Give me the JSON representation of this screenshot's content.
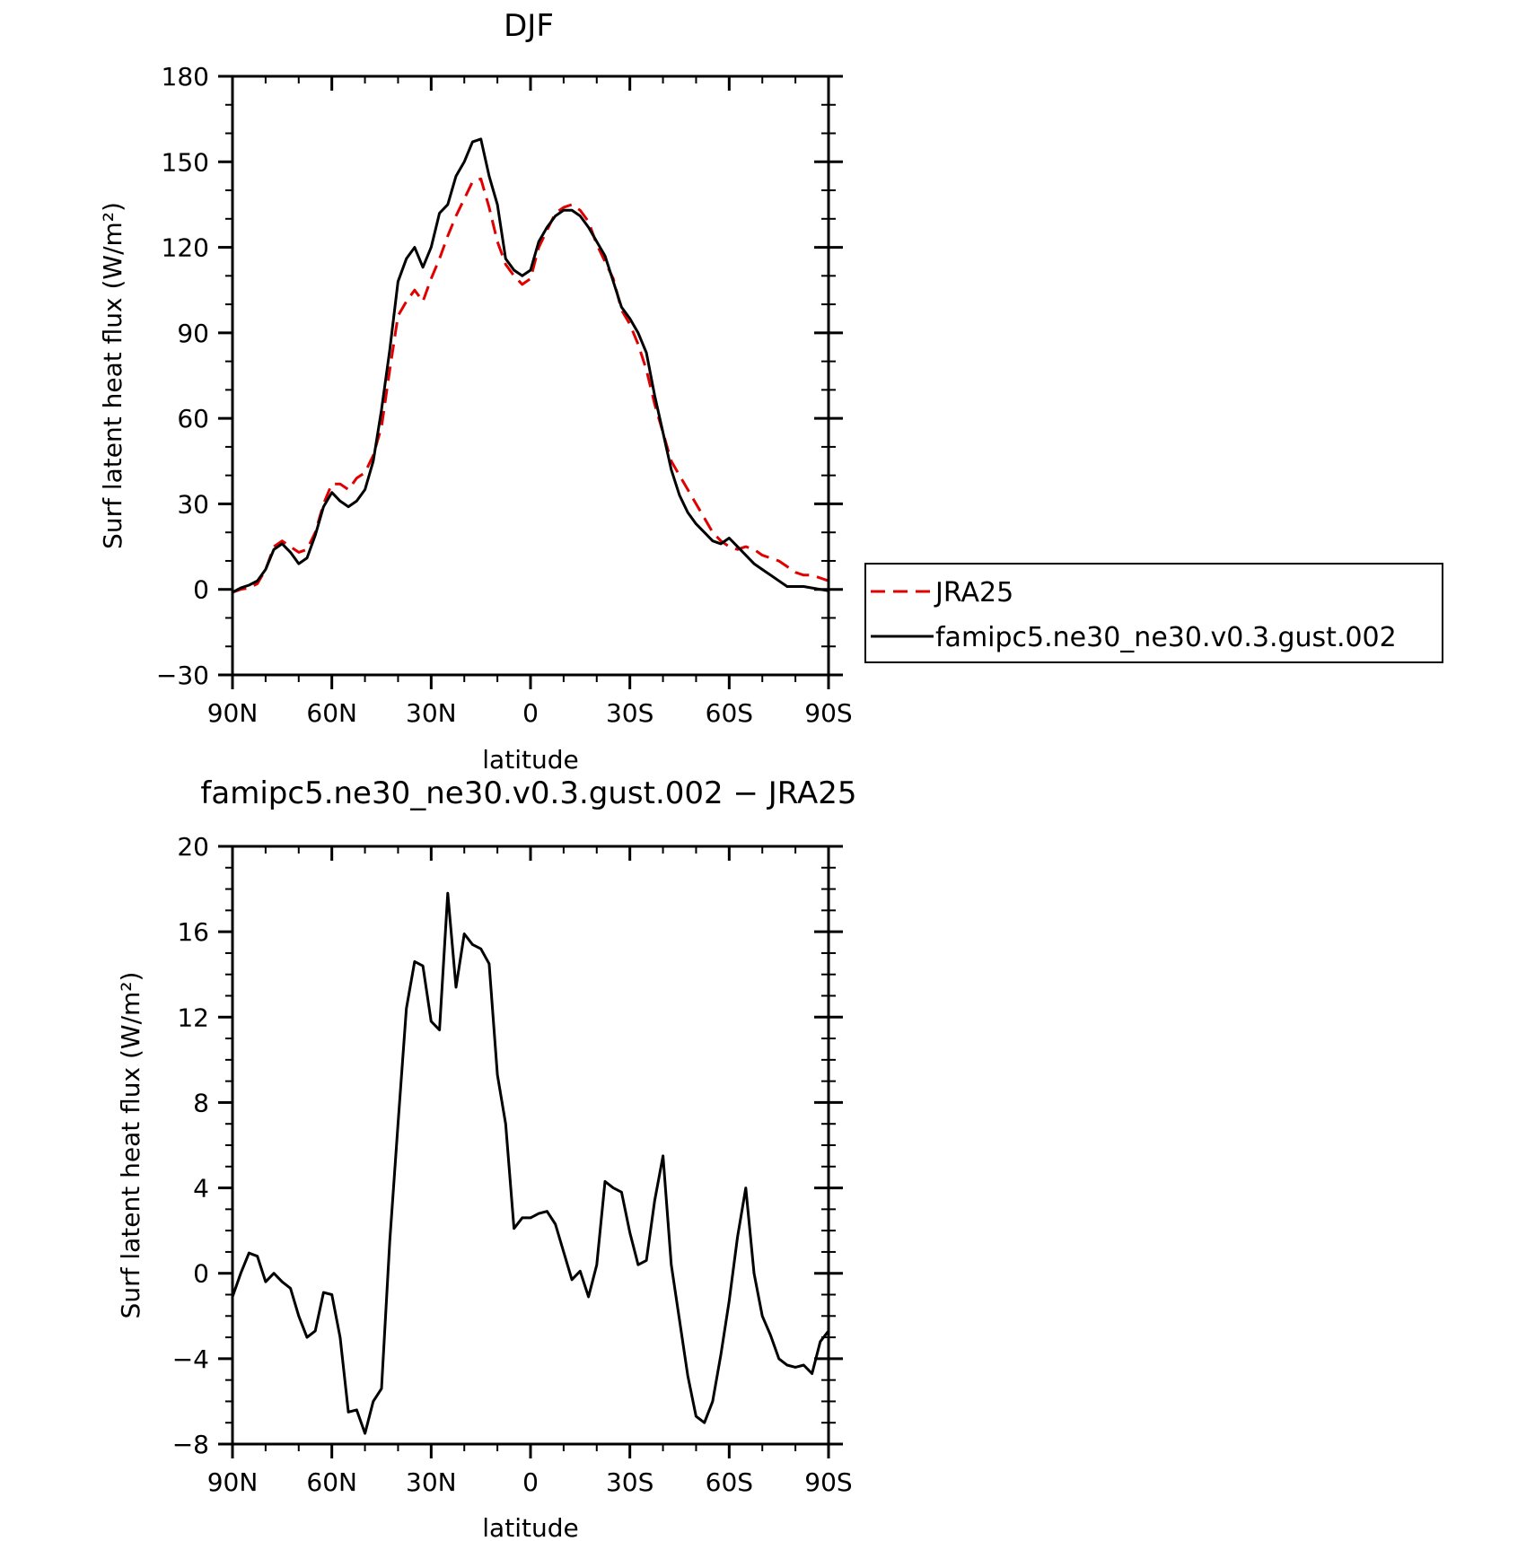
{
  "chart_data": [
    {
      "type": "line",
      "title": "DJF",
      "xlabel": "latitude",
      "ylabel": "Surf latent heat flux (W/m²)",
      "xlim": [
        90,
        -90
      ],
      "ylim": [
        -30,
        180
      ],
      "xticks": [
        90,
        60,
        30,
        0,
        -30,
        -60,
        -90
      ],
      "xtick_labels": [
        "90N",
        "60N",
        "30N",
        "0",
        "30S",
        "60S",
        "90S"
      ],
      "yticks": [
        -30,
        0,
        30,
        60,
        90,
        120,
        150,
        180
      ],
      "ytick_labels": [
        "−30",
        "0",
        "30",
        "60",
        "90",
        "120",
        "150",
        "180"
      ],
      "legend_position": "right",
      "series": [
        {
          "name": "JRA25",
          "color": "#e00000",
          "dash": true,
          "x": [
            90,
            87.5,
            85,
            82.5,
            80,
            77.5,
            75,
            72.5,
            70,
            67.5,
            65,
            62.5,
            60,
            57.5,
            55,
            52.5,
            50,
            47.5,
            45,
            42.5,
            40,
            37.5,
            35,
            32.5,
            30,
            27.5,
            25,
            22.5,
            20,
            17.5,
            15,
            12.5,
            10,
            7.5,
            5,
            2.5,
            0,
            -2.5,
            -5,
            -7.5,
            -10,
            -12.5,
            -15,
            -17.5,
            -20,
            -22.5,
            -25,
            -27.5,
            -30,
            -32.5,
            -35,
            -37.5,
            -40,
            -42.5,
            -45,
            -47.5,
            -50,
            -52.5,
            -55,
            -57.5,
            -60,
            -62.5,
            -65,
            -67.5,
            -70,
            -72.5,
            -75,
            -77.5,
            -80,
            -82.5,
            -85,
            -87.5,
            -90
          ],
          "y": [
            -1,
            0,
            0.5,
            2,
            7,
            15,
            17,
            15,
            13,
            14,
            20,
            30,
            37,
            37,
            35,
            39,
            41,
            47,
            57,
            77,
            96,
            101,
            105,
            101,
            109,
            116,
            124,
            131,
            137,
            143,
            144,
            134,
            122,
            114,
            110,
            107,
            109,
            120,
            126,
            132,
            134,
            135,
            133,
            129,
            121,
            115,
            109,
            98,
            93,
            86,
            77,
            65,
            55,
            45,
            40,
            35,
            30,
            25,
            20,
            17,
            15,
            14,
            15,
            14,
            12,
            11,
            10,
            8,
            6,
            5,
            5,
            4,
            3
          ]
        },
        {
          "name": "famipc5.ne30_ne30.v0.3.gust.002",
          "color": "#000000",
          "dash": false,
          "x": [
            90,
            87.5,
            85,
            82.5,
            80,
            77.5,
            75,
            72.5,
            70,
            67.5,
            65,
            62.5,
            60,
            57.5,
            55,
            52.5,
            50,
            47.5,
            45,
            42.5,
            40,
            37.5,
            35,
            32.5,
            30,
            27.5,
            25,
            22.5,
            20,
            17.5,
            15,
            12.5,
            10,
            7.5,
            5,
            2.5,
            0,
            -2.5,
            -5,
            -7.5,
            -10,
            -12.5,
            -15,
            -17.5,
            -20,
            -22.5,
            -25,
            -27.5,
            -30,
            -32.5,
            -35,
            -37.5,
            -40,
            -42.5,
            -45,
            -47.5,
            -50,
            -52.5,
            -55,
            -57.5,
            -60,
            -62.5,
            -65,
            -67.5,
            -70,
            -72.5,
            -75,
            -77.5,
            -80,
            -82.5,
            -85,
            -87.5,
            -90
          ],
          "y": [
            -1,
            0.5,
            1.5,
            3,
            7,
            14,
            16,
            13,
            9,
            11,
            19,
            29,
            34,
            31,
            29,
            31,
            35,
            45,
            63,
            84,
            108,
            116,
            120,
            113,
            120,
            132,
            135,
            145,
            150,
            157,
            158,
            145,
            135,
            116,
            112,
            110,
            112,
            122,
            127,
            131,
            133,
            133,
            131,
            127,
            122,
            117,
            108,
            99,
            95,
            90,
            83,
            68,
            55,
            42,
            33,
            27,
            23,
            20,
            17,
            16,
            18,
            15,
            12,
            9,
            7,
            5,
            3,
            1,
            1,
            1,
            0.5,
            0,
            -0.5
          ]
        }
      ]
    },
    {
      "type": "line",
      "title": "famipc5.ne30_ne30.v0.3.gust.002 − JRA25",
      "xlabel": "latitude",
      "ylabel": "Surf latent heat flux (W/m²)",
      "xlim": [
        90,
        -90
      ],
      "ylim": [
        -8,
        20
      ],
      "xticks": [
        90,
        60,
        30,
        0,
        -30,
        -60,
        -90
      ],
      "xtick_labels": [
        "90N",
        "60N",
        "30N",
        "0",
        "30S",
        "60S",
        "90S"
      ],
      "yticks": [
        -8,
        -4,
        0,
        4,
        8,
        12,
        16,
        20
      ],
      "ytick_labels": [
        "−8",
        "−4",
        "0",
        "4",
        "8",
        "12",
        "16",
        "20"
      ],
      "series": [
        {
          "color": "#000000",
          "dash": false,
          "x": [
            90,
            87.5,
            85,
            82.5,
            80,
            77.5,
            75,
            72.5,
            70,
            67.5,
            65,
            62.5,
            60,
            57.5,
            55,
            52.5,
            50,
            47.5,
            45,
            42.5,
            40,
            37.5,
            35,
            32.5,
            30,
            27.5,
            25,
            22.5,
            20,
            17.5,
            15,
            12.5,
            10,
            7.5,
            5,
            2.5,
            0,
            -2.5,
            -5,
            -7.5,
            -10,
            -12.5,
            -15,
            -17.5,
            -20,
            -22.5,
            -25,
            -27.5,
            -30,
            -32.5,
            -35,
            -37.5,
            -40,
            -42.5,
            -45,
            -47.5,
            -50,
            -52.5,
            -55,
            -57.5,
            -60,
            -62.5,
            -65,
            -67.5,
            -70,
            -72.5,
            -75,
            -77.5,
            -80,
            -82.5,
            -85,
            -87.5,
            -90
          ],
          "y": [
            -1.1,
            0,
            0.95,
            0.8,
            -0.4,
            0,
            -0.4,
            -0.7,
            -2,
            -3,
            -2.7,
            -0.9,
            -1,
            -3,
            -6.5,
            -6.4,
            -7.5,
            -6,
            -5.4,
            1.5,
            7,
            12.4,
            14.6,
            14.4,
            11.8,
            11.4,
            17.8,
            13.4,
            15.9,
            15.4,
            15.2,
            14.5,
            9.3,
            7,
            2.1,
            2.6,
            2.6,
            2.8,
            2.9,
            2.3,
            1,
            -0.3,
            0.1,
            -1.1,
            0.4,
            4.3,
            4,
            3.8,
            1.9,
            0.4,
            0.6,
            3.4,
            5.5,
            0.4,
            -2.2,
            -4.8,
            -6.7,
            -7,
            -6,
            -3.8,
            -1.3,
            1.7,
            4,
            0,
            -2,
            -2.9,
            -4,
            -4.3,
            -4.4,
            -4.3,
            -4.7,
            -3.2,
            -2.7
          ]
        }
      ]
    }
  ]
}
